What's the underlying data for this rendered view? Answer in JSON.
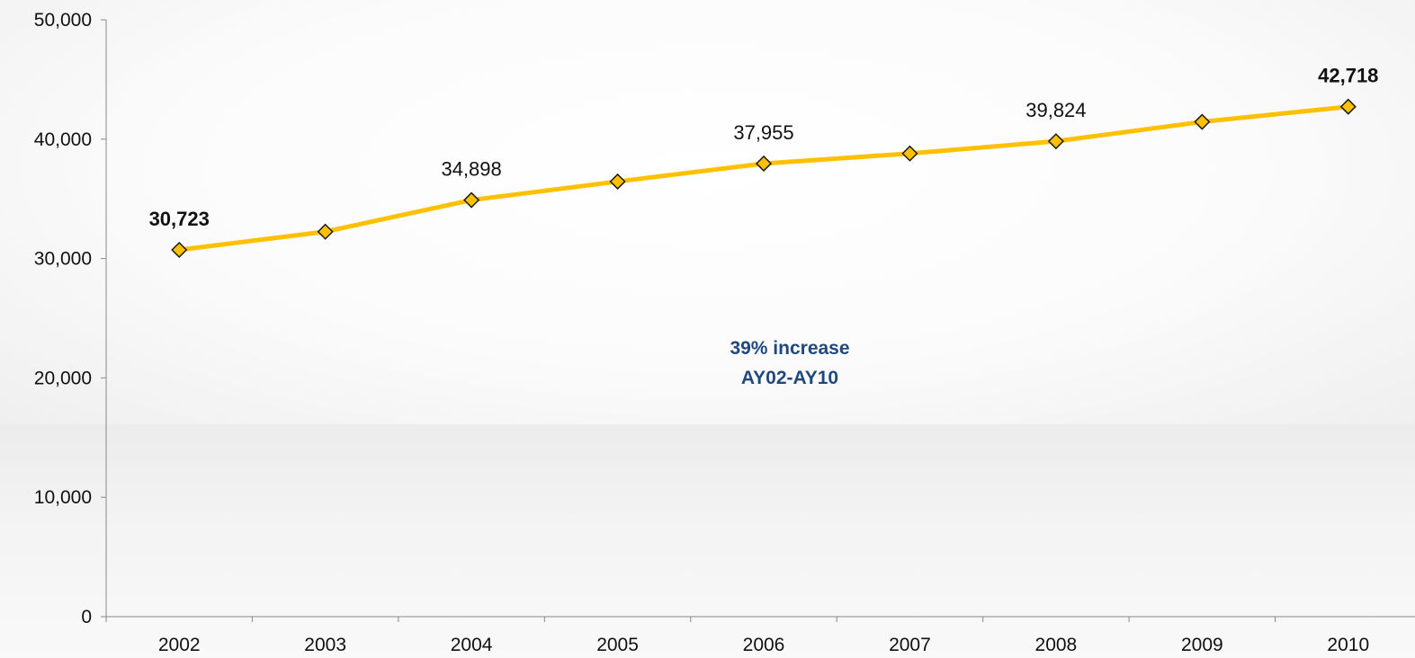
{
  "chart_data": {
    "type": "line",
    "title": "",
    "xlabel": "",
    "ylabel": "",
    "categories": [
      "2002",
      "2003",
      "2004",
      "2005",
      "2006",
      "2007",
      "2008",
      "2009",
      "2010"
    ],
    "series": [
      {
        "values": [
          30723,
          32250,
          34898,
          36450,
          37955,
          38800,
          39824,
          41450,
          42718
        ],
        "color": "#FFC000",
        "marker": "diamond"
      }
    ],
    "data_labels": [
      {
        "index": 0,
        "text": "30,723",
        "bold": true
      },
      {
        "index": 2,
        "text": "34,898",
        "bold": false
      },
      {
        "index": 4,
        "text": "37,955",
        "bold": false
      },
      {
        "index": 6,
        "text": "39,824",
        "bold": false
      },
      {
        "index": 8,
        "text": "42,718",
        "bold": true
      }
    ],
    "ylim": [
      0,
      50000
    ],
    "yticks": [
      0,
      10000,
      20000,
      30000,
      40000,
      50000
    ],
    "ytick_labels": [
      "0",
      "10,000",
      "20,000",
      "30,000",
      "40,000",
      "50,000"
    ],
    "grid": false,
    "annotation": {
      "lines": [
        "39% increase",
        "AY02-AY10"
      ],
      "color": "#1F497D"
    }
  }
}
